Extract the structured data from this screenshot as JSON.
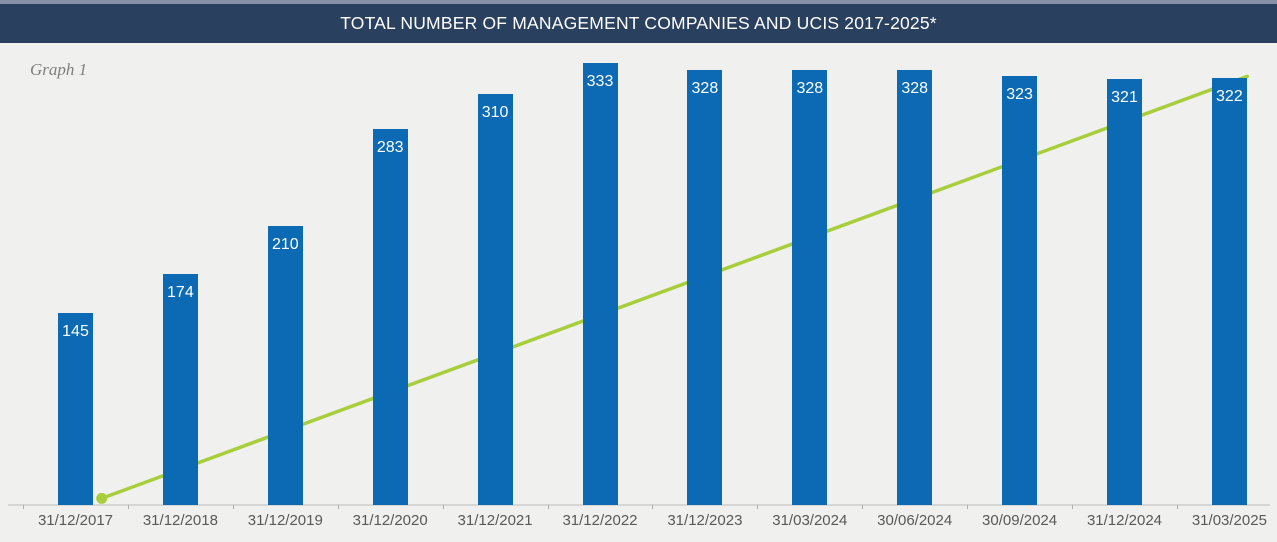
{
  "header": {
    "title": "TOTAL NUMBER OF MANAGEMENT COMPANIES AND UCIS 2017-2025*"
  },
  "graph_label": "Graph 1",
  "colors": {
    "top_strip": "#8891aa",
    "header_bg": "#2a405f",
    "title_text": "#ffffff",
    "background": "#f0f0ee",
    "bar": "#0c6ab5",
    "bar_value_label": "#ffffff",
    "trend_line": "#a8ce3b",
    "axis_line": "#d6d6d4",
    "tick_label": "#595959",
    "graph_label": "#7f7f7f"
  },
  "chart_data": {
    "type": "bar",
    "title": "TOTAL NUMBER OF MANAGEMENT COMPANIES AND UCIS 2017-2025*",
    "categories": [
      "31/12/2017",
      "31/12/2018",
      "31/12/2019",
      "31/12/2020",
      "31/12/2021",
      "31/12/2022",
      "31/12/2023",
      "31/03/2024",
      "30/06/2024",
      "30/09/2024",
      "31/12/2024",
      "31/03/2025"
    ],
    "series": [
      {
        "name": "management-companies-bars",
        "type": "bar",
        "values": [
          145,
          174,
          210,
          283,
          310,
          333,
          328,
          328,
          328,
          323,
          321,
          322
        ],
        "data_labels": "inside-top, white"
      },
      {
        "name": "trend-line-overlay",
        "type": "line",
        "description": "straight yellow-green line with round marker at its start; rises from the baseline just right of the first bar to the top of the last bar; passes behind the bars; no value labels shown",
        "start": {
          "category_frac": 0.25,
          "value": 5
        },
        "end": {
          "category_frac": 11.17,
          "value": 323
        }
      }
    ],
    "xlabel": "",
    "ylabel": "",
    "ylim": [
      0,
      350
    ],
    "grid": false,
    "legend": "none",
    "y_axis_visible": false
  }
}
